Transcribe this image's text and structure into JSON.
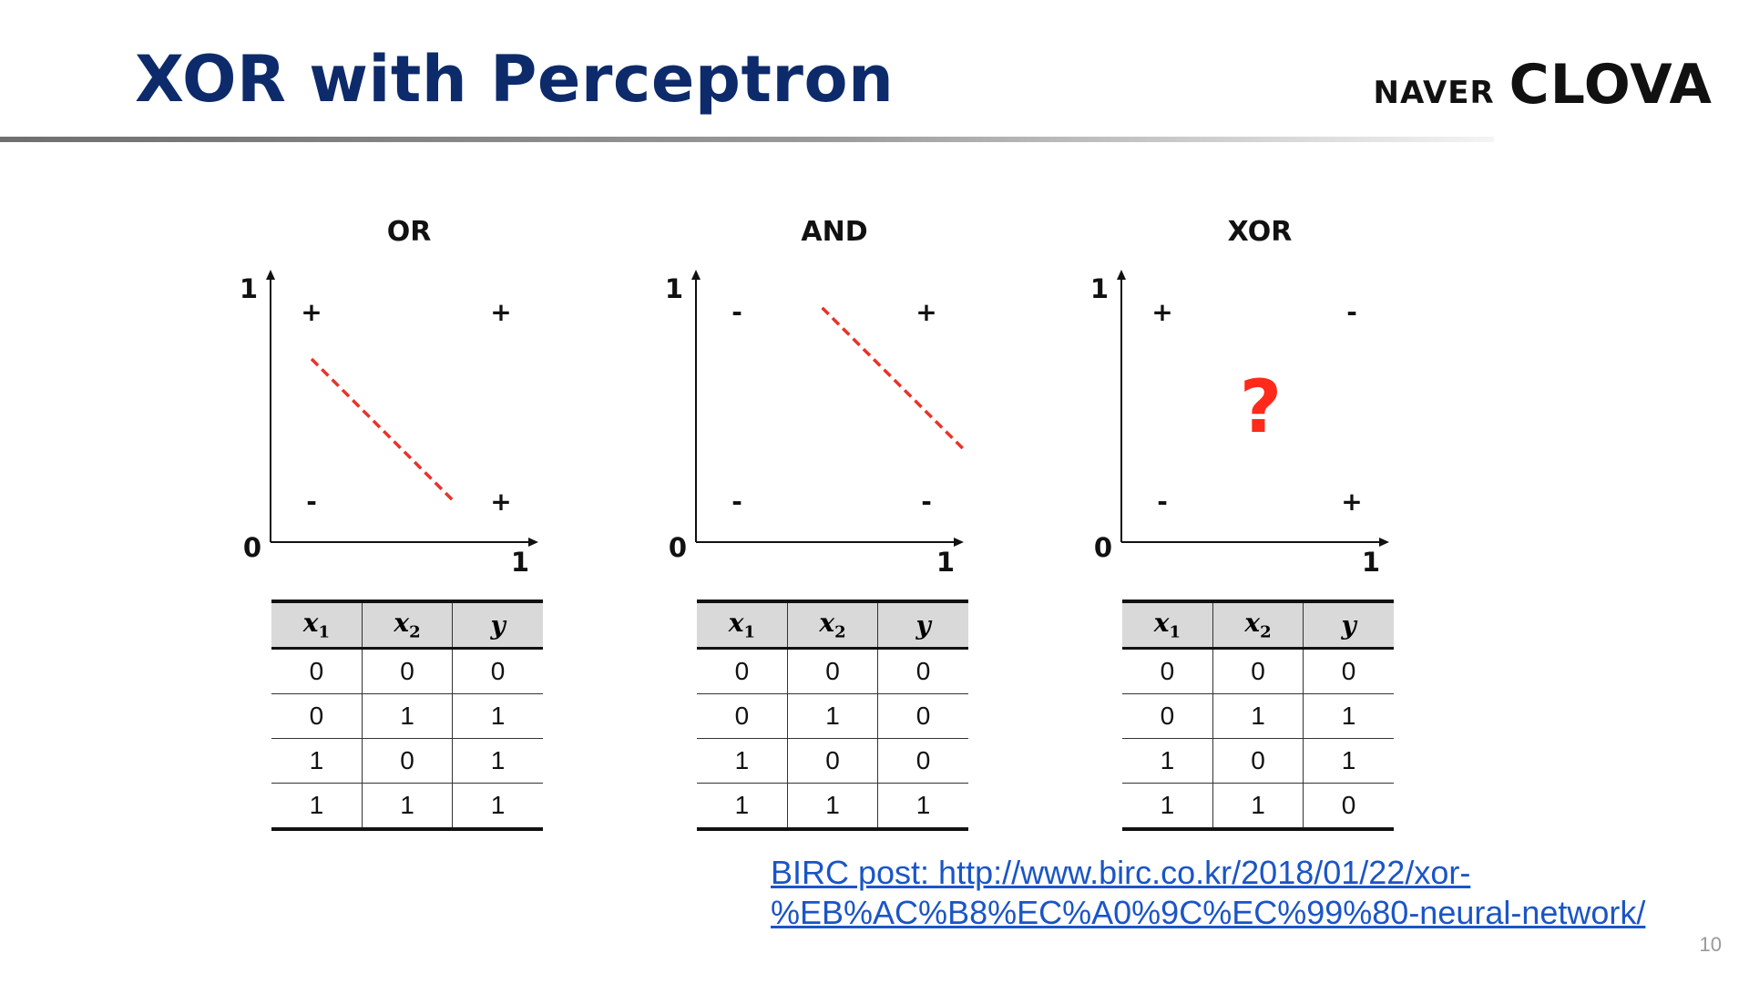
{
  "slide": {
    "title": "XOR with Perceptron",
    "title_color": "#0d2b6b",
    "brand_naver": "NAVER",
    "brand_clova": "CLOVA",
    "page_number": "10"
  },
  "colors": {
    "boundary": "#e8332a",
    "question_mark": "#ff2a1a",
    "link": "#1a55c7",
    "table_header_bg": "#d9d9d9"
  },
  "chart_data": [
    {
      "type": "scatter",
      "title": "OR",
      "axis_labels": {
        "origin": "0",
        "x_max": "1",
        "y_max": "1"
      },
      "points": [
        {
          "x": 0,
          "y": 1,
          "label": "+"
        },
        {
          "x": 1,
          "y": 1,
          "label": "+"
        },
        {
          "x": 0,
          "y": 0,
          "label": "-"
        },
        {
          "x": 1,
          "y": 0,
          "label": "+"
        }
      ],
      "boundary": {
        "style": "dashed",
        "color": "#e8332a",
        "from": [
          0,
          0.75
        ],
        "to": [
          0.75,
          0
        ]
      },
      "question_mark": "",
      "table": {
        "headers": [
          {
            "var": "x",
            "sub": "1"
          },
          {
            "var": "x",
            "sub": "2"
          },
          {
            "var": "y",
            "sub": ""
          }
        ],
        "rows": [
          [
            "0",
            "0",
            "0"
          ],
          [
            "0",
            "1",
            "1"
          ],
          [
            "1",
            "0",
            "1"
          ],
          [
            "1",
            "1",
            "1"
          ]
        ]
      }
    },
    {
      "type": "scatter",
      "title": "AND",
      "axis_labels": {
        "origin": "0",
        "x_max": "1",
        "y_max": "1"
      },
      "points": [
        {
          "x": 0,
          "y": 1,
          "label": "-"
        },
        {
          "x": 1,
          "y": 1,
          "label": "+"
        },
        {
          "x": 0,
          "y": 0,
          "label": "-"
        },
        {
          "x": 1,
          "y": 0,
          "label": "-"
        }
      ],
      "boundary": {
        "style": "dashed",
        "color": "#e8332a",
        "from": [
          0.45,
          1.02
        ],
        "to": [
          1.2,
          0.27
        ]
      },
      "question_mark": "",
      "table": {
        "headers": [
          {
            "var": "x",
            "sub": "1"
          },
          {
            "var": "x",
            "sub": "2"
          },
          {
            "var": "y",
            "sub": ""
          }
        ],
        "rows": [
          [
            "0",
            "0",
            "0"
          ],
          [
            "0",
            "1",
            "0"
          ],
          [
            "1",
            "0",
            "0"
          ],
          [
            "1",
            "1",
            "1"
          ]
        ]
      }
    },
    {
      "type": "scatter",
      "title": "XOR",
      "axis_labels": {
        "origin": "0",
        "x_max": "1",
        "y_max": "1"
      },
      "points": [
        {
          "x": 0,
          "y": 1,
          "label": "+"
        },
        {
          "x": 1,
          "y": 1,
          "label": "-"
        },
        {
          "x": 0,
          "y": 0,
          "label": "-"
        },
        {
          "x": 1,
          "y": 0,
          "label": "+"
        }
      ],
      "boundary": null,
      "question_mark": "?",
      "table": {
        "headers": [
          {
            "var": "x",
            "sub": "1"
          },
          {
            "var": "x",
            "sub": "2"
          },
          {
            "var": "y",
            "sub": ""
          }
        ],
        "rows": [
          [
            "0",
            "0",
            "0"
          ],
          [
            "0",
            "1",
            "1"
          ],
          [
            "1",
            "0",
            "1"
          ],
          [
            "1",
            "1",
            "0"
          ]
        ]
      }
    }
  ],
  "reference": {
    "line1": "BIRC post: http://www.birc.co.kr/2018/01/22/xor-",
    "line2": "%EB%AC%B8%EC%A0%9C%EC%99%80-neural-network/"
  }
}
